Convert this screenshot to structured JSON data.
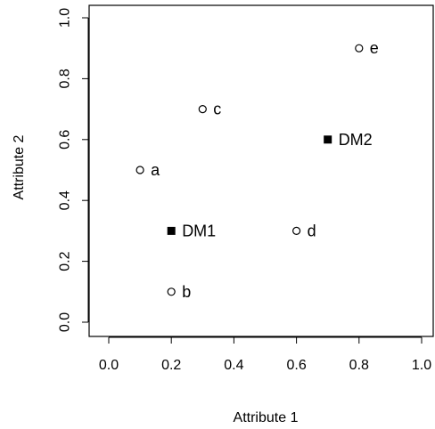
{
  "chart_data": {
    "type": "scatter",
    "title": "",
    "xlabel": "Attribute 1",
    "ylabel": "Attribute 2",
    "xlim": [
      0,
      1
    ],
    "ylim": [
      0,
      1
    ],
    "xticks": [
      "0.0",
      "0.2",
      "0.4",
      "0.6",
      "0.8",
      "1.0"
    ],
    "yticks": [
      "0.0",
      "0.2",
      "0.4",
      "0.6",
      "0.8",
      "1.0"
    ],
    "grid": false,
    "points": [
      {
        "label": "a",
        "x": 0.1,
        "y": 0.5,
        "marker": "open-circle"
      },
      {
        "label": "b",
        "x": 0.2,
        "y": 0.1,
        "marker": "open-circle"
      },
      {
        "label": "c",
        "x": 0.3,
        "y": 0.7,
        "marker": "open-circle"
      },
      {
        "label": "d",
        "x": 0.6,
        "y": 0.3,
        "marker": "open-circle"
      },
      {
        "label": "e",
        "x": 0.8,
        "y": 0.9,
        "marker": "open-circle"
      },
      {
        "label": "DM1",
        "x": 0.2,
        "y": 0.3,
        "marker": "filled-square"
      },
      {
        "label": "DM2",
        "x": 0.7,
        "y": 0.6,
        "marker": "filled-square"
      }
    ]
  }
}
